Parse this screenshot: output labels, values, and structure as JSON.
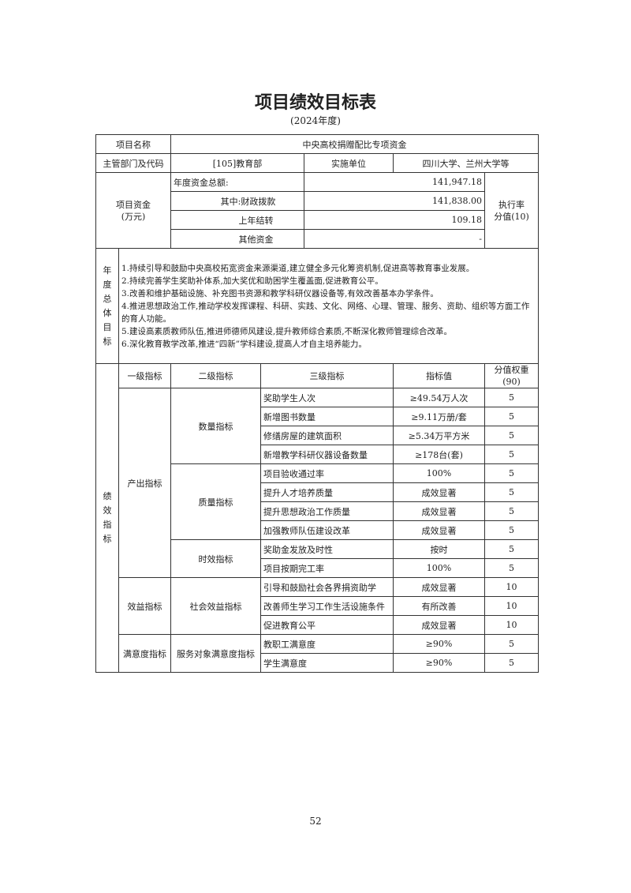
{
  "title": "项目绩效目标表",
  "subtitle": "(2024年度)",
  "project": {
    "name_label": "项目名称",
    "name_value": "中央高校捐赠配比专项资金",
    "dept_label": "主管部门及代码",
    "dept_value": "[105]教育部",
    "impl_label": "实施单位",
    "impl_value": "四川大学、兰州大学等"
  },
  "funds": {
    "label": "项目资金\n(万元)",
    "rate_label": "执行率\n分值(10)",
    "rows": [
      {
        "label": "年度资金总额:",
        "value": "141,947.18"
      },
      {
        "label": "其中:财政拨款",
        "value": "141,838.00"
      },
      {
        "label": "上年结转",
        "value": "109.18"
      },
      {
        "label": "其他资金",
        "value": "-"
      }
    ]
  },
  "goals": {
    "label": "年度总体目标",
    "items": [
      "1.持续引导和鼓励中央高校拓宽资金来源渠道,建立健全多元化筹资机制,促进高等教育事业发展。",
      "2.持续完善学生奖助补体系,加大奖优和助困学生覆盖面,促进教育公平。",
      "3.改善和维护基础设施、补充图书资源和教学科研仪器设备等,有效改善基本办学条件。",
      "4.推进思想政治工作,推动学校发挥课程、科研、实践、文化、网络、心理、管理、服务、资助、组织等方面工作的育人功能。",
      "5.建设高素质教师队伍,推进师德师风建设,提升教师综合素质,不断深化教师管理综合改革。",
      "6.深化教育教学改革,推进“四新”学科建设,提高人才自主培养能力。"
    ]
  },
  "indicators": {
    "label": "绩效指标",
    "headers": [
      "一级指标",
      "二级指标",
      "三级指标",
      "指标值",
      "分值权重\n(90)"
    ],
    "groups": [
      {
        "level1": "产出指标",
        "subs": [
          {
            "level2": "数量指标",
            "rows": [
              [
                "奖助学生人次",
                "≥49.54万人次",
                "5"
              ],
              [
                "新增图书数量",
                "≥9.11万册/套",
                "5"
              ],
              [
                "修缮房屋的建筑面积",
                "≥5.34万平方米",
                "5"
              ],
              [
                "新增教学科研仪器设备数量",
                "≥178台(套)",
                "5"
              ]
            ]
          },
          {
            "level2": "质量指标",
            "rows": [
              [
                "项目验收通过率",
                "100%",
                "5"
              ],
              [
                "提升人才培养质量",
                "成效显著",
                "5"
              ],
              [
                "提升思想政治工作质量",
                "成效显著",
                "5"
              ],
              [
                "加强教师队伍建设改革",
                "成效显著",
                "5"
              ]
            ]
          },
          {
            "level2": "时效指标",
            "rows": [
              [
                "奖助金发放及时性",
                "按时",
                "5"
              ],
              [
                "项目按期完工率",
                "100%",
                "5"
              ]
            ]
          }
        ]
      },
      {
        "level1": "效益指标",
        "subs": [
          {
            "level2": "社会效益指标",
            "rows": [
              [
                "引导和鼓励社会各界捐资助学",
                "成效显著",
                "10"
              ],
              [
                "改善师生学习工作生活设施条件",
                "有所改善",
                "10"
              ],
              [
                "促进教育公平",
                "成效显著",
                "10"
              ]
            ]
          }
        ]
      },
      {
        "level1": "满意度指标",
        "subs": [
          {
            "level2": "服务对象满意度指标",
            "rows": [
              [
                "教职工满意度",
                "≥90%",
                "5"
              ],
              [
                "学生满意度",
                "≥90%",
                "5"
              ]
            ]
          }
        ]
      }
    ]
  },
  "page_number": "52"
}
